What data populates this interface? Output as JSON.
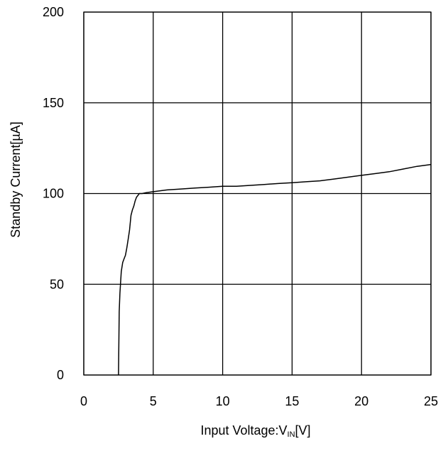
{
  "chart_data": {
    "type": "line",
    "xlabel_main": "Input Voltage:V",
    "xlabel_sub": "IN",
    "xlabel_tail": "[V]",
    "ylabel": "Standby Current[µA]",
    "xlim": [
      0,
      25
    ],
    "ylim": [
      0,
      200
    ],
    "xticks": [
      "0",
      "5",
      "10",
      "15",
      "20",
      "25"
    ],
    "yticks": [
      "0",
      "50",
      "100",
      "150",
      "200"
    ],
    "grid": true,
    "line_color": "#000000",
    "series": [
      {
        "x": [
          2.5,
          2.55,
          2.6,
          2.7,
          2.8,
          2.9,
          3.0,
          3.1,
          3.2,
          3.3,
          3.4,
          3.5,
          3.6,
          3.7,
          3.8,
          3.9,
          4.0,
          4.2,
          4.5,
          5.0,
          6.0,
          7.0,
          8.0,
          9.0,
          10.0,
          11.0,
          12.0,
          13.0,
          14.0,
          15.0,
          16.0,
          17.0,
          18.0,
          19.0,
          20.0,
          21.0,
          22.0,
          23.0,
          24.0,
          25.0
        ],
        "y": [
          0,
          35,
          45,
          57,
          62,
          64,
          66,
          70,
          75,
          80,
          88,
          91,
          93,
          96,
          98,
          99,
          100,
          100,
          100.5,
          101,
          102,
          102.5,
          103,
          103.5,
          104,
          104,
          104.5,
          105,
          105.5,
          106,
          106.5,
          107,
          108,
          109,
          110,
          111,
          112,
          113.5,
          115,
          116
        ]
      }
    ]
  }
}
